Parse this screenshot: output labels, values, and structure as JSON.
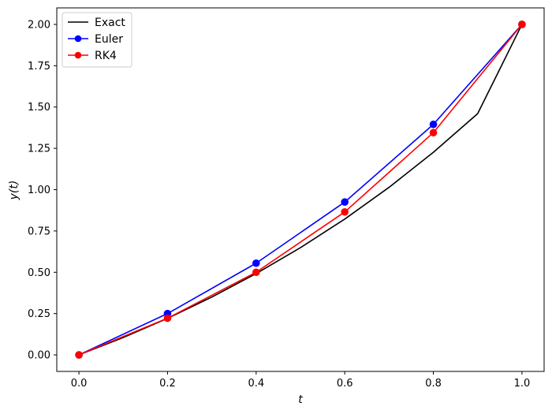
{
  "chart_data": {
    "type": "line",
    "title": "",
    "xlabel": "t",
    "ylabel": "y(t)",
    "xlim": [
      -0.05,
      1.05
    ],
    "ylim": [
      -0.1,
      2.1
    ],
    "xticks": [
      0.0,
      0.2,
      0.4,
      0.6,
      0.8,
      1.0
    ],
    "xtick_labels": [
      "0.0",
      "0.2",
      "0.4",
      "0.6",
      "0.8",
      "1.0"
    ],
    "yticks": [
      0.0,
      0.25,
      0.5,
      0.75,
      1.0,
      1.25,
      1.5,
      1.75,
      2.0
    ],
    "ytick_labels": [
      "0.00",
      "0.25",
      "0.50",
      "0.75",
      "1.00",
      "1.25",
      "1.50",
      "1.75",
      "2.00"
    ],
    "grid": false,
    "legend_position": "top-left",
    "series": [
      {
        "name": "Exact",
        "color": "#000000",
        "markers": false,
        "x": [
          0.0,
          0.1,
          0.2,
          0.3,
          0.4,
          0.5,
          0.6,
          0.7,
          0.8,
          0.9,
          1.0
        ],
        "y": [
          0.0,
          0.105,
          0.221,
          0.35,
          0.492,
          0.649,
          0.822,
          1.014,
          1.226,
          1.46,
          2.0
        ]
      },
      {
        "name": "Euler",
        "color": "#0000ff",
        "markers": true,
        "x": [
          0.0,
          0.2,
          0.4,
          0.6,
          0.8,
          1.0
        ],
        "y": [
          0.0,
          0.25,
          0.555,
          0.925,
          1.395,
          2.0
        ]
      },
      {
        "name": "RK4",
        "color": "#ff0000",
        "markers": true,
        "x": [
          0.0,
          0.2,
          0.4,
          0.6,
          0.8,
          1.0
        ],
        "y": [
          0.0,
          0.222,
          0.5,
          0.865,
          1.345,
          2.0
        ]
      }
    ]
  }
}
